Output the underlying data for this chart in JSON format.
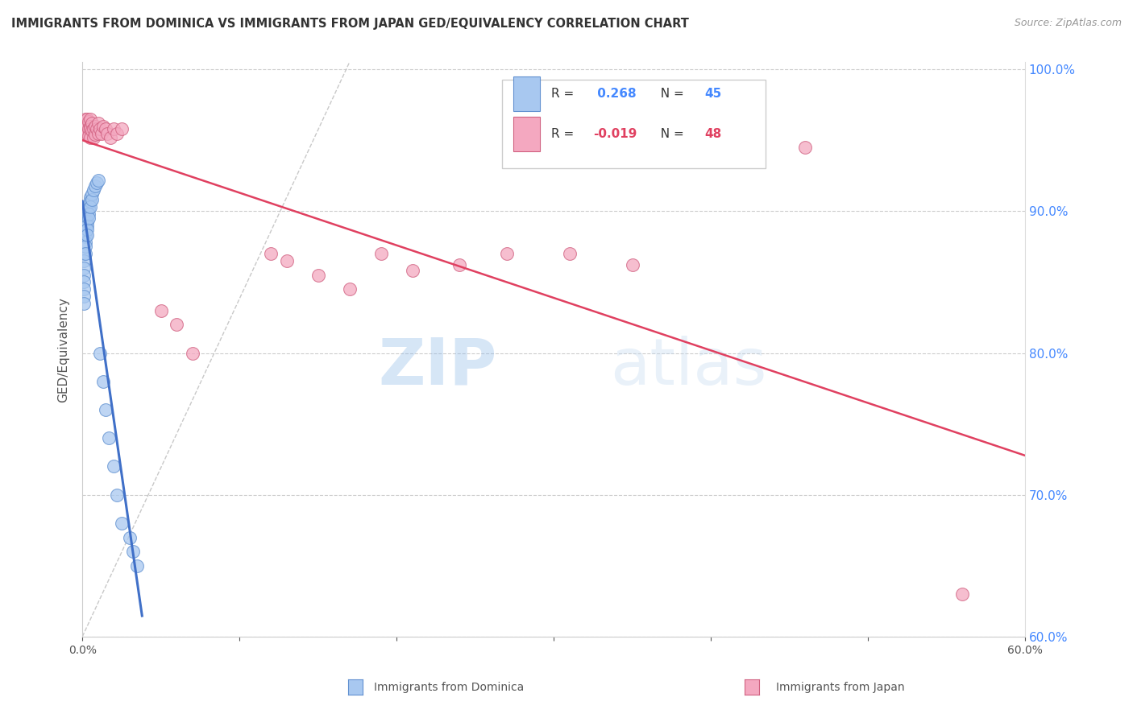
{
  "title": "IMMIGRANTS FROM DOMINICA VS IMMIGRANTS FROM JAPAN GED/EQUIVALENCY CORRELATION CHART",
  "source": "Source: ZipAtlas.com",
  "ylabel": "GED/Equivalency",
  "xlim": [
    0.0,
    0.6
  ],
  "ylim": [
    0.6,
    1.005
  ],
  "r_dominica": 0.268,
  "n_dominica": 45,
  "r_japan": -0.019,
  "n_japan": 48,
  "color_dominica": "#A8C8F0",
  "color_japan": "#F4A8C0",
  "edge_dominica": "#6090D0",
  "edge_japan": "#D06080",
  "trend_color_dominica": "#4070C8",
  "trend_color_japan": "#E04060",
  "legend_label_dominica": "Immigrants from Dominica",
  "legend_label_japan": "Immigrants from Japan",
  "dominica_x": [
    0.001,
    0.001,
    0.001,
    0.001,
    0.001,
    0.001,
    0.001,
    0.001,
    0.002,
    0.002,
    0.002,
    0.002,
    0.002,
    0.002,
    0.002,
    0.002,
    0.003,
    0.003,
    0.003,
    0.003,
    0.003,
    0.003,
    0.004,
    0.004,
    0.004,
    0.004,
    0.005,
    0.005,
    0.005,
    0.006,
    0.006,
    0.007,
    0.008,
    0.009,
    0.01,
    0.011,
    0.013,
    0.015,
    0.017,
    0.02,
    0.022,
    0.025,
    0.03,
    0.032,
    0.035
  ],
  "dominica_y": [
    0.87,
    0.865,
    0.86,
    0.855,
    0.85,
    0.845,
    0.84,
    0.835,
    0.895,
    0.892,
    0.888,
    0.885,
    0.882,
    0.878,
    0.875,
    0.87,
    0.9,
    0.897,
    0.893,
    0.89,
    0.887,
    0.883,
    0.905,
    0.902,
    0.898,
    0.895,
    0.91,
    0.907,
    0.903,
    0.912,
    0.908,
    0.915,
    0.918,
    0.92,
    0.922,
    0.8,
    0.78,
    0.76,
    0.74,
    0.72,
    0.7,
    0.68,
    0.67,
    0.66,
    0.65
  ],
  "japan_x": [
    0.001,
    0.001,
    0.002,
    0.002,
    0.002,
    0.003,
    0.003,
    0.003,
    0.004,
    0.004,
    0.004,
    0.005,
    0.005,
    0.005,
    0.005,
    0.006,
    0.006,
    0.007,
    0.007,
    0.008,
    0.008,
    0.009,
    0.01,
    0.01,
    0.011,
    0.012,
    0.013,
    0.015,
    0.016,
    0.018,
    0.02,
    0.022,
    0.025,
    0.05,
    0.06,
    0.07,
    0.12,
    0.13,
    0.15,
    0.17,
    0.19,
    0.21,
    0.24,
    0.27,
    0.31,
    0.35,
    0.46,
    0.56
  ],
  "japan_y": [
    0.96,
    0.955,
    0.965,
    0.96,
    0.958,
    0.965,
    0.96,
    0.955,
    0.963,
    0.958,
    0.953,
    0.965,
    0.96,
    0.958,
    0.952,
    0.962,
    0.957,
    0.958,
    0.952,
    0.96,
    0.954,
    0.958,
    0.962,
    0.955,
    0.958,
    0.955,
    0.96,
    0.958,
    0.955,
    0.952,
    0.958,
    0.955,
    0.958,
    0.83,
    0.82,
    0.8,
    0.87,
    0.865,
    0.855,
    0.845,
    0.87,
    0.858,
    0.862,
    0.87,
    0.87,
    0.862,
    0.945,
    0.63
  ],
  "watermark_zip": "ZIP",
  "watermark_atlas": "atlas",
  "background_color": "#FFFFFF",
  "grid_color": "#CCCCCC"
}
